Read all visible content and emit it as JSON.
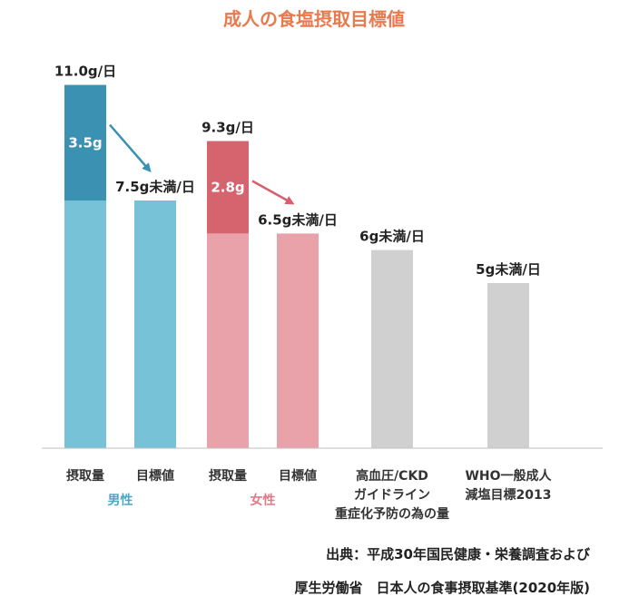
{
  "colors": {
    "title": "#ea7a4e",
    "male_light": "#77c2d6",
    "male_dark": "#3a91b1",
    "female_light": "#e9a2aa",
    "female_dark": "#d5646f",
    "gray": "#d0d0d0",
    "arrow_male": "#3a91b1",
    "arrow_female": "#d95f6e",
    "group_male": "#4aa8c4",
    "group_female": "#e07b86"
  },
  "chart_data": {
    "type": "bar",
    "title": "成人の食塩摂取目標値",
    "unit": "g/日",
    "bars": [
      {
        "label": [
          "摂取量"
        ],
        "value": 11.0,
        "value_label": "11.0g/日",
        "segments": [
          {
            "value": 7.5,
            "color": "male_light"
          },
          {
            "value": 3.5,
            "color": "male_dark",
            "label": "3.5g"
          }
        ]
      },
      {
        "label": [
          "目標値"
        ],
        "value": 7.5,
        "value_label": "7.5g未満/日",
        "segments": [
          {
            "value": 7.5,
            "color": "male_light"
          }
        ]
      },
      {
        "label": [
          "摂取量"
        ],
        "value": 9.3,
        "value_label": "9.3g/日",
        "segments": [
          {
            "value": 6.5,
            "color": "female_light"
          },
          {
            "value": 2.8,
            "color": "female_dark",
            "label": "2.8g"
          }
        ]
      },
      {
        "label": [
          "目標値"
        ],
        "value": 6.5,
        "value_label": "6.5g未満/日",
        "segments": [
          {
            "value": 6.5,
            "color": "female_light"
          }
        ]
      },
      {
        "label": [
          "高血圧/CKD",
          "ガイドライン",
          "重症化予防の為の量"
        ],
        "value": 6.0,
        "value_label": "6g未満/日",
        "segments": [
          {
            "value": 6.0,
            "color": "gray"
          }
        ]
      },
      {
        "label": [
          "WHO一般成人",
          "減塩目標2013"
        ],
        "value": 5.0,
        "value_label": "5g未満/日",
        "segments": [
          {
            "value": 5.0,
            "color": "gray"
          }
        ]
      }
    ],
    "groups": [
      {
        "label": "男性",
        "bars": [
          0,
          1
        ],
        "color": "group_male"
      },
      {
        "label": "女性",
        "bars": [
          2,
          3
        ],
        "color": "group_female"
      }
    ],
    "arrows": [
      {
        "from_bar": 0,
        "to_bar": 1,
        "color": "arrow_male"
      },
      {
        "from_bar": 2,
        "to_bar": 3,
        "color": "arrow_female"
      }
    ]
  },
  "source": {
    "line1": "出典：平成30年国民健康・栄養調査および",
    "line2": "厚生労働省　日本人の食事摂取基準(2020年版)"
  }
}
